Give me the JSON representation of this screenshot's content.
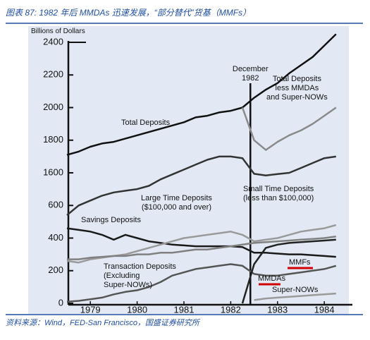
{
  "chart_data": {
    "type": "line",
    "title": "图表 87: 1982 年后 MMDAs 迅速发展，“部分替代”货基（MMFs）",
    "source": "资料来源：Wind，FED-San Francisco，国盛证券研究所",
    "y_label": "Billions of Dollars",
    "x": [
      1979.0,
      1979.25,
      1979.5,
      1979.75,
      1980.0,
      1980.25,
      1980.5,
      1980.75,
      1981.0,
      1981.25,
      1981.5,
      1981.75,
      1982.0,
      1982.25,
      1982.5,
      1982.75,
      1983.0,
      1983.25,
      1983.5,
      1983.75,
      1984.0,
      1984.25,
      1984.5,
      1984.75
    ],
    "xlim": [
      1979.0,
      1985.1
    ],
    "xticks": [
      {
        "value": 1979.5,
        "label": "1979"
      },
      {
        "value": 1980.5,
        "label": "1980"
      },
      {
        "value": 1981.5,
        "label": "1981"
      },
      {
        "value": 1982.5,
        "label": "1982"
      },
      {
        "value": 1983.5,
        "label": "1983"
      },
      {
        "value": 1984.5,
        "label": "1984"
      }
    ],
    "ylim": [
      0,
      2400
    ],
    "yticks": [
      0,
      200,
      400,
      600,
      1600,
      1800,
      2000,
      2200,
      2400
    ],
    "annotations": [
      {
        "text": "December\n1982",
        "x": 1982.92
      }
    ],
    "series": [
      {
        "name": "Total Deposits",
        "color": "#111111",
        "values": [
          1710,
          1730,
          1760,
          1780,
          1790,
          1810,
          1830,
          1850,
          1870,
          1890,
          1910,
          1940,
          1950,
          1970,
          1980,
          2000,
          2060,
          2110,
          2150,
          2210,
          2260,
          2310,
          2380,
          2450
        ]
      },
      {
        "name": "Total Deposits\nless MMDAs\nand Super-NOWs",
        "color": "#8a8a8a",
        "values": [
          null,
          null,
          null,
          null,
          null,
          null,
          null,
          null,
          null,
          null,
          null,
          null,
          null,
          null,
          null,
          2000,
          1800,
          1740,
          1790,
          1830,
          1860,
          1900,
          1950,
          2000
        ]
      },
      {
        "name": "Small Time Deposits\n(less than $100,000)",
        "color": "#333333",
        "values": [
          540,
          600,
          750,
          900,
          1000,
          1050,
          1100,
          1200,
          1400,
          1550,
          1620,
          1650,
          1680,
          1700,
          1700,
          1690,
          1570,
          1520,
          1560,
          1600,
          1630,
          1660,
          1690,
          1700
        ]
      },
      {
        "name": "Savings Deposits",
        "color": "#1a1a1a",
        "values": [
          460,
          450,
          440,
          420,
          390,
          420,
          400,
          380,
          370,
          360,
          355,
          350,
          350,
          350,
          350,
          345,
          310,
          310,
          305,
          300,
          300,
          295,
          290,
          285
        ]
      },
      {
        "name": "Large Time Deposits\n($100,000 and over)",
        "color": "#9a9a9a",
        "values": [
          260,
          250,
          270,
          280,
          290,
          300,
          320,
          340,
          360,
          380,
          400,
          410,
          420,
          430,
          440,
          420,
          380,
          390,
          400,
          420,
          440,
          450,
          460,
          480
        ]
      },
      {
        "name": "Transaction Deposits\n(Excluding\nSuper-NOWs)",
        "color": "#808080",
        "values": [
          270,
          270,
          280,
          285,
          290,
          290,
          300,
          300,
          310,
          310,
          320,
          330,
          330,
          340,
          350,
          360,
          370,
          375,
          380,
          385,
          390,
          395,
          400,
          410
        ]
      },
      {
        "name": "MMFs",
        "color": "#555555",
        "values": [
          10,
          15,
          25,
          35,
          55,
          70,
          80,
          100,
          130,
          170,
          190,
          210,
          220,
          230,
          240,
          230,
          180,
          170,
          170,
          180,
          190,
          200,
          210,
          230
        ]
      },
      {
        "name": "MMDAs",
        "color": "#222222",
        "values": [
          null,
          null,
          null,
          null,
          null,
          null,
          null,
          null,
          null,
          null,
          null,
          null,
          null,
          null,
          null,
          0,
          240,
          340,
          360,
          370,
          375,
          380,
          385,
          390
        ]
      },
      {
        "name": "Super-NOWs",
        "color": "#9a9a9a",
        "values": [
          null,
          null,
          null,
          null,
          null,
          null,
          null,
          null,
          null,
          null,
          null,
          null,
          null,
          null,
          null,
          null,
          20,
          30,
          35,
          40,
          45,
          50,
          55,
          60
        ]
      }
    ]
  }
}
